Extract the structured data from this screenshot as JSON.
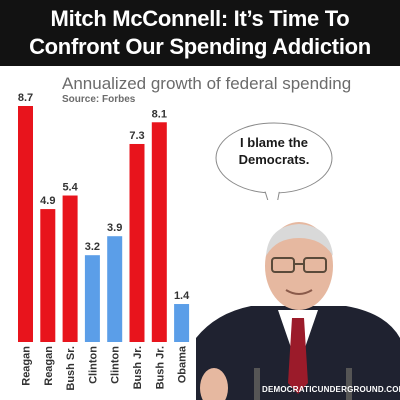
{
  "header": {
    "line1": "Mitch McConnell: It’s Time To",
    "line2": "Confront Our Spending Addiction"
  },
  "subtitle": "Annualized growth of federal spending",
  "source": "Source: Forbes",
  "speech_bubble": {
    "line1": "I blame the",
    "line2": "Democrats."
  },
  "watermark": "DEMOCRATICUNDERGROUND.COM",
  "colors": {
    "republican": "#e8141c",
    "democrat": "#5b9ee8",
    "header_bg": "#121212"
  },
  "chart_data": {
    "type": "bar",
    "title": "Annualized growth of federal spending",
    "subtitle": "Source: Forbes",
    "categories": [
      "Reagan",
      "Reagan",
      "Bush Sr.",
      "Clinton",
      "Clinton",
      "Bush Jr.",
      "Bush Jr.",
      "Obama"
    ],
    "values": [
      8.7,
      4.9,
      5.4,
      3.2,
      3.9,
      7.3,
      8.1,
      1.4
    ],
    "labels": [
      "8.7",
      "4.9",
      "5.4",
      "3.2",
      "3.9",
      "7.3",
      "8.1",
      "1.4"
    ],
    "party": [
      "R",
      "R",
      "R",
      "D",
      "D",
      "R",
      "R",
      "D"
    ],
    "ylim": [
      0,
      8.7
    ],
    "grid": false,
    "legend": "none"
  }
}
